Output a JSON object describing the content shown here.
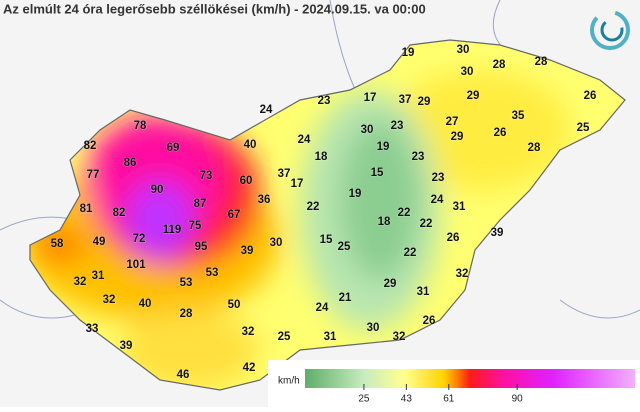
{
  "title": "Az elmúlt 24 óra legerősebb széllökései (km/h) - 2024.09.15. va 00:00",
  "stations": [
    19,
    30,
    28,
    28,
    30,
    29,
    26,
    23,
    17,
    37,
    29,
    35,
    27,
    25,
    78,
    24,
    30,
    23,
    26,
    82,
    69,
    40,
    24,
    19,
    29,
    28,
    86,
    18,
    23,
    77,
    73,
    60,
    37,
    17,
    15,
    23,
    90,
    87,
    36,
    19,
    24,
    81,
    82,
    67,
    22,
    18,
    22,
    31,
    119,
    75,
    72,
    22,
    58,
    49,
    95,
    30,
    15,
    25,
    26,
    39,
    39,
    22,
    101,
    53,
    32,
    31,
    53,
    32,
    29,
    32,
    40,
    31,
    50,
    28,
    24,
    21,
    33,
    32,
    25,
    31,
    30,
    32,
    26,
    39,
    46,
    42
  ],
  "legend": {
    "unit": "km/h",
    "range": [
      0,
      140
    ],
    "ticks": [
      25,
      43,
      61,
      90
    ]
  }
}
